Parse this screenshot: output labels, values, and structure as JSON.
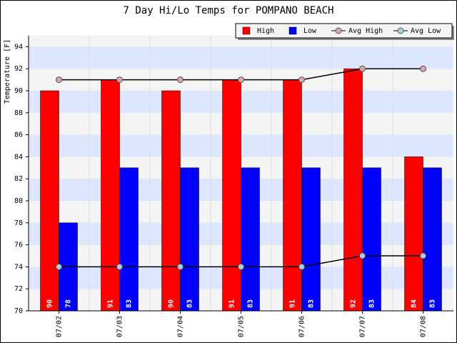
{
  "chart_data": {
    "type": "bar",
    "title": "7 Day Hi/Lo Temps for POMPANO BEACH",
    "y_label": "Temperature [F]",
    "categories": [
      "07/02",
      "07/03",
      "07/04",
      "07/05",
      "07/06",
      "07/07",
      "07/08"
    ],
    "series": [
      {
        "name": "High",
        "color": "#ff0000",
        "style": "bar",
        "values": [
          90,
          91,
          90,
          91,
          91,
          92,
          84
        ]
      },
      {
        "name": "Low",
        "color": "#0000ff",
        "style": "bar",
        "values": [
          78,
          83,
          83,
          83,
          83,
          83,
          83
        ]
      },
      {
        "name": "Avg High",
        "color": "#d8a8a8",
        "style": "line",
        "values": [
          91,
          91,
          91,
          91,
          91,
          92,
          92
        ]
      },
      {
        "name": "Avg Low",
        "color": "#a8d0e0",
        "style": "line",
        "values": [
          74,
          74,
          74,
          74,
          74,
          75,
          75
        ]
      }
    ],
    "ylim": [
      70,
      95
    ],
    "yticks": [
      70,
      72,
      74,
      76,
      78,
      80,
      82,
      84,
      86,
      88,
      90,
      92,
      94
    ],
    "grid": true
  }
}
